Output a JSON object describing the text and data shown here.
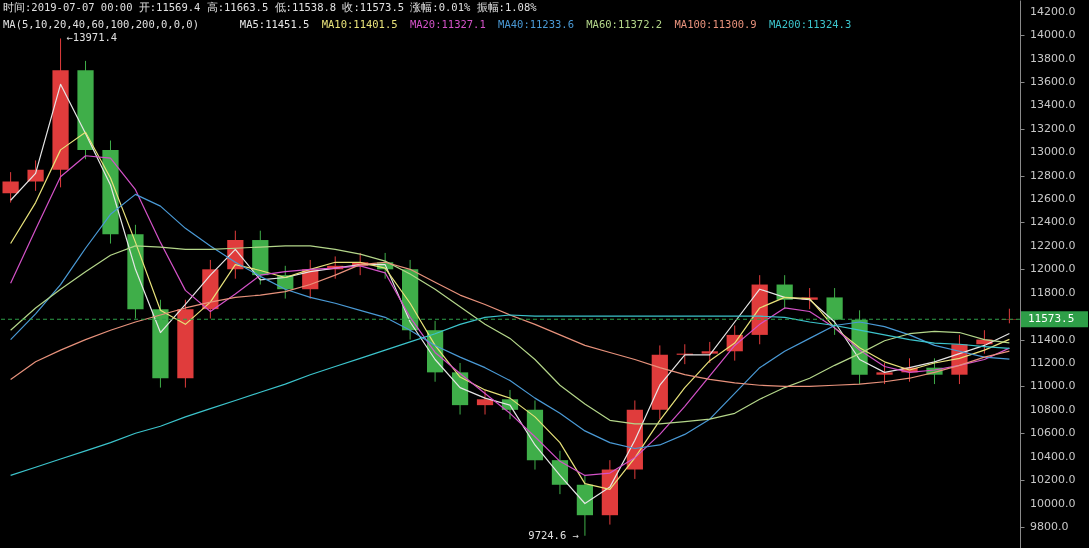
{
  "chart_data": {
    "type": "candlestick",
    "title": "时间:2019-07-07 00:00  开:11569.4  高:11663.5  低:11538.8  收:11573.5  涨幅:0.01%  振幅:1.08%",
    "legend_title": "MA(5,10,20,40,60,100,200,0,0,0)",
    "legend": "top",
    "tick_labels": "y",
    "categories": [
      null,
      null,
      null,
      null,
      null,
      null,
      null,
      null,
      null,
      null,
      null,
      null,
      null,
      null,
      null,
      null,
      null,
      null,
      null,
      null,
      null,
      null,
      null,
      null,
      null,
      null,
      null,
      null,
      null,
      null,
      null,
      null,
      null,
      null,
      null,
      null,
      null,
      null,
      null,
      null,
      null
    ],
    "ohlc": [
      [
        12650,
        12830,
        12570,
        12750
      ],
      [
        12750,
        12930,
        12670,
        12850
      ],
      [
        12850,
        13971.4,
        12700,
        13700
      ],
      [
        13700,
        13780,
        12940,
        13020
      ],
      [
        13020,
        13100,
        12220,
        12300
      ],
      [
        12300,
        12380,
        11580,
        11660
      ],
      [
        11660,
        11740,
        10990,
        11070
      ],
      [
        11070,
        11740,
        10990,
        11660
      ],
      [
        11660,
        12080,
        11580,
        12000
      ],
      [
        12000,
        12330,
        11920,
        12250
      ],
      [
        12250,
        12330,
        11870,
        11950
      ],
      [
        11950,
        12030,
        11750,
        11830
      ],
      [
        11830,
        12080,
        11750,
        12000
      ],
      [
        12000,
        12110,
        11920,
        12030
      ],
      [
        12030,
        12140,
        11950,
        12060
      ],
      [
        12060,
        12140,
        11920,
        12000
      ],
      [
        12000,
        12080,
        11400,
        11480
      ],
      [
        11480,
        11560,
        11040,
        11120
      ],
      [
        11120,
        11200,
        10760,
        10840
      ],
      [
        10840,
        10970,
        10760,
        10890
      ],
      [
        10890,
        10970,
        10720,
        10800
      ],
      [
        10800,
        10880,
        10290,
        10370
      ],
      [
        10370,
        10450,
        10080,
        10160
      ],
      [
        10160,
        10240,
        9724.6,
        9900
      ],
      [
        9900,
        10370,
        9820,
        10290
      ],
      [
        10290,
        10880,
        10210,
        10800
      ],
      [
        10800,
        11350,
        10720,
        11270
      ],
      [
        11270,
        11360,
        11190,
        11280
      ],
      [
        11280,
        11380,
        11200,
        11300
      ],
      [
        11300,
        11520,
        11220,
        11440
      ],
      [
        11440,
        11950,
        11360,
        11870
      ],
      [
        11870,
        11950,
        11660,
        11740
      ],
      [
        11740,
        11840,
        11660,
        11760
      ],
      [
        11760,
        11840,
        11440,
        11570
      ],
      [
        11570,
        11650,
        11020,
        11100
      ],
      [
        11100,
        11200,
        11020,
        11120
      ],
      [
        11120,
        11240,
        11040,
        11160
      ],
      [
        11160,
        11240,
        11020,
        11100
      ],
      [
        11100,
        11440,
        11020,
        11360
      ],
      [
        11360,
        11480,
        11280,
        11400
      ],
      [
        11569.4,
        11663.5,
        11538.8,
        11573.5
      ]
    ],
    "colors": [
      "#e03c3c",
      "#e03c3c",
      "#e03c3c",
      "#3fae49",
      "#3fae49",
      "#3fae49",
      "#3fae49",
      "#e03c3c",
      "#e03c3c",
      "#e03c3c",
      "#3fae49",
      "#3fae49",
      "#e03c3c",
      "#e03c3c",
      "#e03c3c",
      "#3fae49",
      "#3fae49",
      "#3fae49",
      "#3fae49",
      "#e03c3c",
      "#3fae49",
      "#3fae49",
      "#3fae49",
      "#3fae49",
      "#e03c3c",
      "#e03c3c",
      "#e03c3c",
      "#e03c3c",
      "#e03c3c",
      "#e03c3c",
      "#e03c3c",
      "#3fae49",
      "#e03c3c",
      "#3fae49",
      "#3fae49",
      "#e03c3c",
      "#e03c3c",
      "#3fae49",
      "#e03c3c",
      "#e03c3c",
      "#e03c3c"
    ],
    "series": [
      {
        "name": "MA5:11451.5",
        "type": "line",
        "color": "#e6e6e6",
        "values": [
          12590,
          12820,
          13580,
          13160,
          12720,
          12000,
          11460,
          11700,
          11950,
          12170,
          11910,
          11930,
          11980,
          12010,
          12040,
          12040,
          11550,
          11230,
          10990,
          10900,
          10840,
          10500,
          10240,
          10000,
          10140,
          10540,
          11010,
          11270,
          11270,
          11550,
          11830,
          11760,
          11740,
          11550,
          11230,
          11120,
          11160,
          11210,
          11280,
          11350,
          11451.5
        ]
      },
      {
        "name": "MA10:11401.5",
        "type": "line",
        "color": "#e8e27a",
        "values": [
          12220,
          12570,
          13020,
          13170,
          12780,
          12230,
          11650,
          11530,
          11720,
          12040,
          11990,
          11930,
          12000,
          12060,
          12060,
          12010,
          11710,
          11350,
          11080,
          10970,
          10900,
          10740,
          10520,
          10170,
          10120,
          10390,
          10710,
          10990,
          11220,
          11370,
          11670,
          11760,
          11750,
          11500,
          11330,
          11210,
          11140,
          11200,
          11240,
          11310,
          11401.5
        ]
      },
      {
        "name": "MA20:11327.1",
        "type": "line",
        "color": "#d452c8",
        "values": [
          11880,
          12340,
          12790,
          12970,
          12950,
          12680,
          12230,
          11820,
          11640,
          11790,
          11950,
          11980,
          12000,
          12010,
          12030,
          11970,
          11590,
          11290,
          11110,
          10940,
          10770,
          10570,
          10360,
          10240,
          10260,
          10390,
          10590,
          10830,
          11090,
          11350,
          11530,
          11670,
          11640,
          11500,
          11310,
          11170,
          11120,
          11140,
          11180,
          11230,
          11327.1
        ]
      },
      {
        "name": "MA40:11233.6",
        "type": "line",
        "color": "#4a9ad6",
        "values": [
          11400,
          11620,
          11870,
          12180,
          12470,
          12640,
          12540,
          12350,
          12200,
          12060,
          11940,
          11830,
          11760,
          11710,
          11650,
          11590,
          11480,
          11350,
          11250,
          11160,
          11050,
          10900,
          10770,
          10620,
          10520,
          10470,
          10500,
          10590,
          10720,
          10940,
          11160,
          11300,
          11410,
          11520,
          11550,
          11510,
          11440,
          11350,
          11300,
          11250,
          11233.6
        ]
      },
      {
        "name": "MA60:11372.2",
        "type": "line",
        "color": "#b4d68a",
        "values": [
          11480,
          11670,
          11830,
          11980,
          12120,
          12200,
          12190,
          12170,
          12170,
          12180,
          12190,
          12200,
          12200,
          12170,
          12130,
          12070,
          11960,
          11830,
          11680,
          11530,
          11410,
          11230,
          11010,
          10850,
          10710,
          10680,
          10680,
          10700,
          10720,
          10770,
          10890,
          10990,
          11070,
          11180,
          11280,
          11390,
          11450,
          11470,
          11460,
          11400,
          11372.2
        ]
      },
      {
        "name": "MA100:11300.9",
        "type": "line",
        "color": "#e8927c",
        "values": [
          11060,
          11210,
          11310,
          11400,
          11480,
          11550,
          11610,
          11670,
          11720,
          11760,
          11780,
          11810,
          11870,
          11950,
          12040,
          12060,
          12000,
          11890,
          11780,
          11700,
          11610,
          11530,
          11440,
          11350,
          11290,
          11230,
          11160,
          11100,
          11060,
          11030,
          11010,
          11000,
          11000,
          11010,
          11020,
          11040,
          11070,
          11120,
          11180,
          11250,
          11300.9
        ]
      },
      {
        "name": "MA200:11324.3",
        "type": "line",
        "color": "#3cc4cc",
        "values": [
          10240,
          10310,
          10380,
          10450,
          10520,
          10600,
          10660,
          10740,
          10810,
          10880,
          10950,
          11020,
          11100,
          11170,
          11240,
          11310,
          11380,
          11450,
          11530,
          11590,
          11610,
          11600,
          11600,
          11600,
          11600,
          11600,
          11600,
          11600,
          11600,
          11600,
          11600,
          11590,
          11550,
          11520,
          11480,
          11440,
          11400,
          11370,
          11360,
          11340,
          11324.3
        ]
      }
    ],
    "ylim": [
      9620,
      14300
    ],
    "yticks": [
      {
        "value": 9800,
        "label": "9800.0"
      },
      {
        "value": 10000,
        "label": "10000.0"
      },
      {
        "value": 10200,
        "label": "10200.0"
      },
      {
        "value": 10400,
        "label": "10400.0"
      },
      {
        "value": 10600,
        "label": "10600.0"
      },
      {
        "value": 10800,
        "label": "10800.0"
      },
      {
        "value": 11000,
        "label": "11000.0"
      },
      {
        "value": 11200,
        "label": "11200.0"
      },
      {
        "value": 11400,
        "label": "11400.0"
      },
      {
        "value": 11800,
        "label": "11800.0"
      },
      {
        "value": 12000,
        "label": "12000.0"
      },
      {
        "value": 12200,
        "label": "12200.0"
      },
      {
        "value": 12400,
        "label": "12400.0"
      },
      {
        "value": 12600,
        "label": "12600.0"
      },
      {
        "value": 12800,
        "label": "12800.0"
      },
      {
        "value": 13000,
        "label": "13000.0"
      },
      {
        "value": 13200,
        "label": "13200.0"
      },
      {
        "value": 13400,
        "label": "13400.0"
      },
      {
        "value": 13600,
        "label": "13600.0"
      },
      {
        "value": 13800,
        "label": "13800.0"
      },
      {
        "value": 14000,
        "label": "14000.0"
      },
      {
        "value": 14200,
        "label": "14200.0"
      }
    ],
    "ref_lines": [
      {
        "axis": "y",
        "value": 11573.5,
        "label": "11573.5",
        "color": "#2e9e48",
        "line_style": "dashed"
      }
    ],
    "annotations": [
      "←13971.4",
      "9724.6 →"
    ]
  }
}
